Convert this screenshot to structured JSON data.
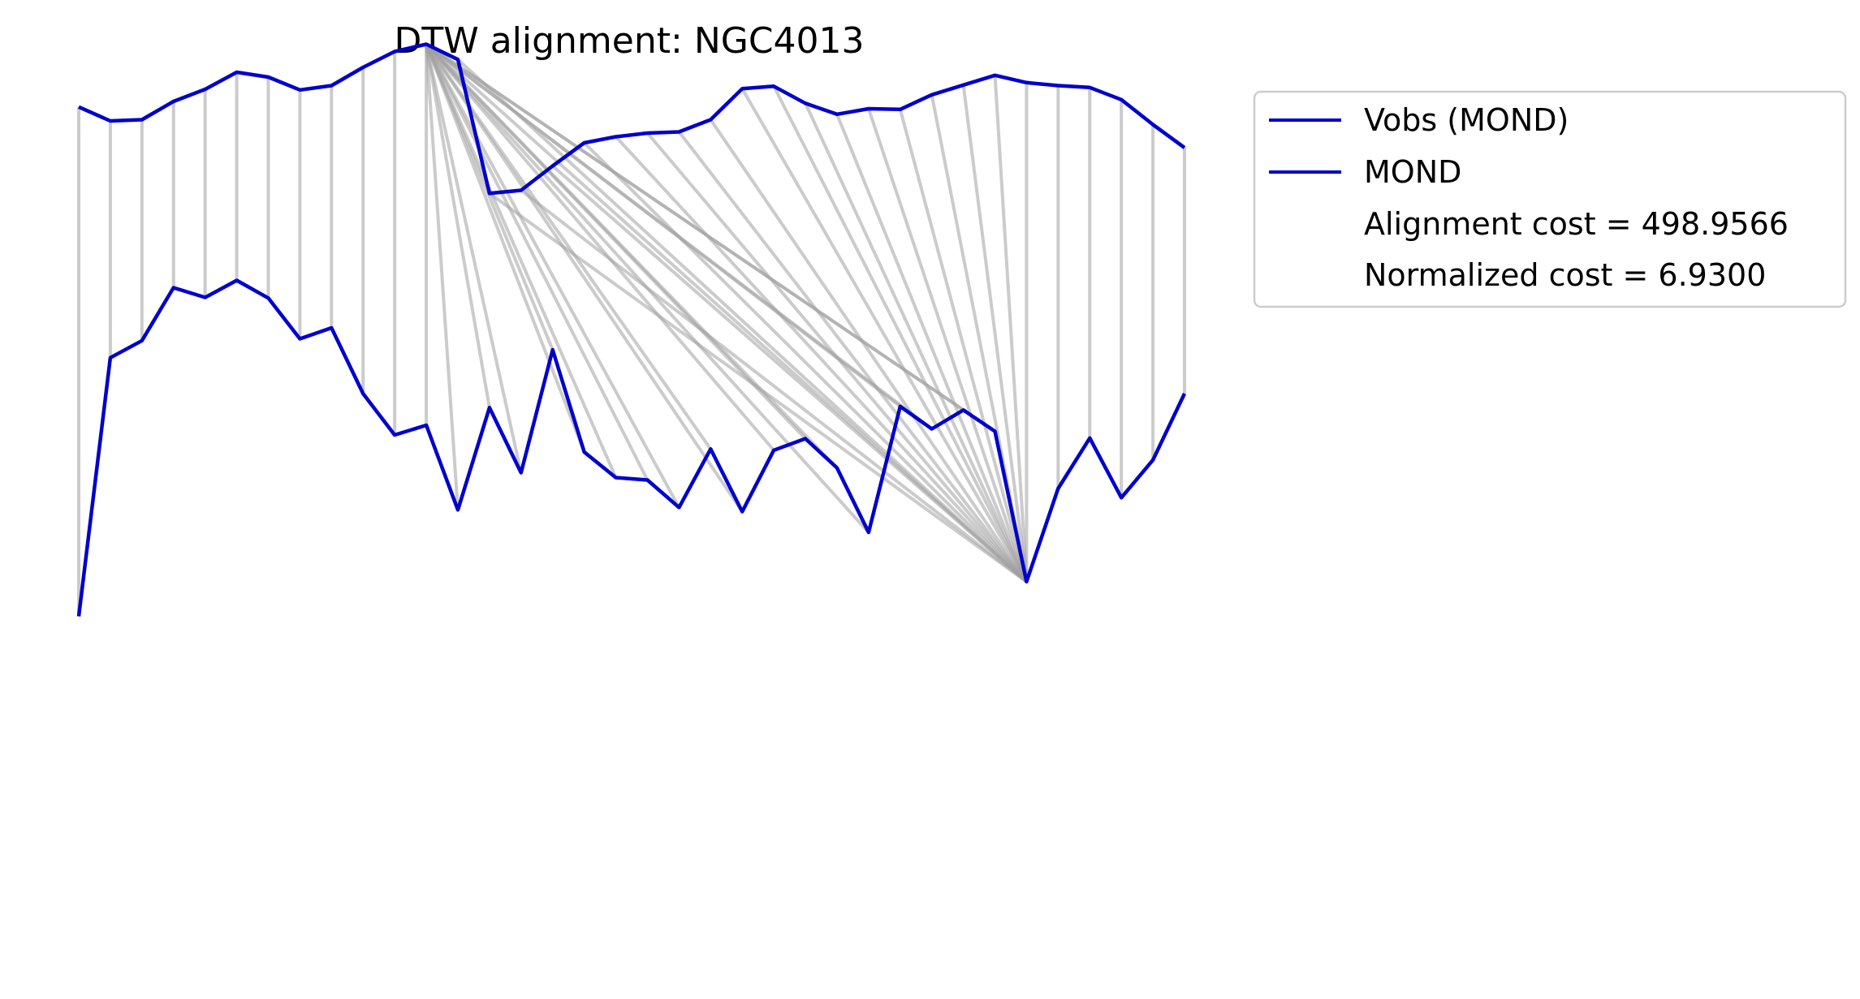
{
  "chart_data": {
    "type": "line",
    "title": "DTW alignment: NGC4013",
    "xlabel": "",
    "ylabel": "",
    "axes_visible": false,
    "grid": false,
    "legend_position": "outside-top-right",
    "series": [
      {
        "name": "Vobs (MOND)",
        "color": "#0000cc",
        "values": [
          1.7,
          -0.6,
          -0.4,
          2.6,
          4.6,
          7.4,
          6.6,
          4.5,
          5.2,
          8.2,
          10.8,
          12.0,
          9.5,
          -12.5,
          -12.0,
          -8.0,
          -4.2,
          -3.2,
          -2.6,
          -2.4,
          -0.4,
          4.7,
          5.1,
          2.3,
          0.5,
          1.4,
          1.3,
          3.7,
          5.3,
          6.9,
          5.7,
          5.2,
          4.9,
          2.9,
          -1.2,
          -5.0
        ]
      },
      {
        "name": "MOND",
        "color": "#0000cc",
        "values": [
          -82.0,
          -39.5,
          -36.7,
          -28.0,
          -29.6,
          -26.8,
          -29.7,
          -36.4,
          -34.6,
          -45.4,
          -52.2,
          -50.6,
          -64.5,
          -47.7,
          -58.4,
          -38.2,
          -55.0,
          -59.2,
          -59.6,
          -64.1,
          -54.5,
          -64.8,
          -54.7,
          -52.8,
          -57.6,
          -68.2,
          -47.5,
          -51.2,
          -48.1,
          -51.6,
          -76.3,
          -61.0,
          -52.7,
          -62.5,
          -56.3,
          -45.4
        ]
      }
    ],
    "alignment_path": [
      [
        0,
        0
      ],
      [
        1,
        1
      ],
      [
        2,
        2
      ],
      [
        3,
        3
      ],
      [
        4,
        4
      ],
      [
        5,
        5
      ],
      [
        6,
        6
      ],
      [
        7,
        7
      ],
      [
        8,
        8
      ],
      [
        9,
        9
      ],
      [
        10,
        10
      ],
      [
        11,
        11
      ],
      [
        11,
        12
      ],
      [
        11,
        13
      ],
      [
        11,
        14
      ],
      [
        11,
        15
      ],
      [
        11,
        16
      ],
      [
        11,
        17
      ],
      [
        11,
        18
      ],
      [
        11,
        19
      ],
      [
        11,
        20
      ],
      [
        11,
        21
      ],
      [
        11,
        22
      ],
      [
        11,
        23
      ],
      [
        11,
        24
      ],
      [
        11,
        25
      ],
      [
        11,
        26
      ],
      [
        11,
        27
      ],
      [
        11,
        28
      ],
      [
        11,
        29
      ],
      [
        11,
        30
      ],
      [
        12,
        30
      ],
      [
        13,
        30
      ],
      [
        14,
        30
      ],
      [
        15,
        30
      ],
      [
        16,
        30
      ],
      [
        17,
        30
      ],
      [
        18,
        30
      ],
      [
        19,
        30
      ],
      [
        20,
        30
      ],
      [
        21,
        30
      ],
      [
        22,
        30
      ],
      [
        23,
        30
      ],
      [
        24,
        30
      ],
      [
        25,
        30
      ],
      [
        26,
        30
      ],
      [
        27,
        30
      ],
      [
        28,
        30
      ],
      [
        29,
        30
      ],
      [
        30,
        30
      ],
      [
        31,
        31
      ],
      [
        32,
        32
      ],
      [
        33,
        33
      ],
      [
        34,
        34
      ],
      [
        35,
        35
      ]
    ],
    "legend": {
      "entries": [
        "Vobs (MOND)",
        "MOND"
      ],
      "text_entries": [
        "Alignment cost = 498.9566",
        "Normalized cost = 6.9300"
      ]
    }
  }
}
